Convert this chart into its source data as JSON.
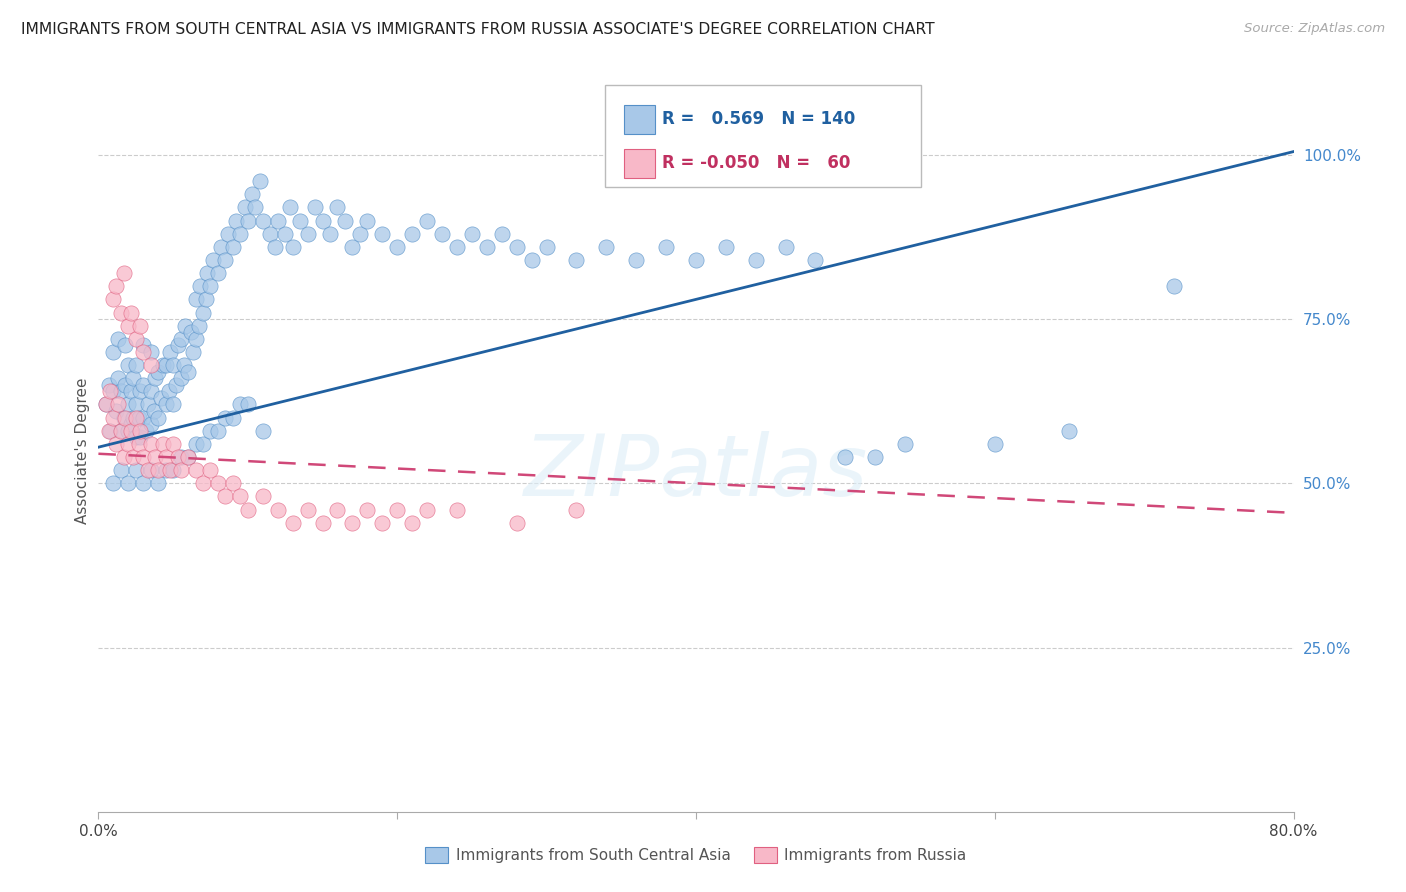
{
  "title": "IMMIGRANTS FROM SOUTH CENTRAL ASIA VS IMMIGRANTS FROM RUSSIA ASSOCIATE'S DEGREE CORRELATION CHART",
  "source_text": "Source: ZipAtlas.com",
  "ylabel": "Associate's Degree",
  "x_min": 0.0,
  "x_max": 0.8,
  "y_min": 0.0,
  "y_max": 1.1,
  "y_tick_labels_right": [
    "25.0%",
    "50.0%",
    "75.0%",
    "100.0%"
  ],
  "y_tick_vals_right": [
    0.25,
    0.5,
    0.75,
    1.0
  ],
  "legend_R1": "0.569",
  "legend_N1": "140",
  "legend_R2": "-0.050",
  "legend_N2": "60",
  "blue_color": "#a8c8e8",
  "blue_edge_color": "#5590c8",
  "pink_color": "#f8b8c8",
  "pink_edge_color": "#e06080",
  "blue_line_color": "#2060a0",
  "pink_line_color": "#d04878",
  "watermark": "ZIPatlas",
  "blue_trend_x0": 0.0,
  "blue_trend_y0": 0.555,
  "blue_trend_x1": 0.8,
  "blue_trend_y1": 1.005,
  "pink_trend_x0": 0.0,
  "pink_trend_y0": 0.545,
  "pink_trend_x1": 0.8,
  "pink_trend_y1": 0.455,
  "blue_scatter_x": [
    0.005,
    0.007,
    0.008,
    0.01,
    0.01,
    0.012,
    0.013,
    0.013,
    0.015,
    0.015,
    0.017,
    0.018,
    0.018,
    0.02,
    0.02,
    0.02,
    0.022,
    0.022,
    0.023,
    0.023,
    0.025,
    0.025,
    0.025,
    0.027,
    0.028,
    0.028,
    0.03,
    0.03,
    0.03,
    0.032,
    0.033,
    0.035,
    0.035,
    0.035,
    0.037,
    0.038,
    0.04,
    0.04,
    0.042,
    0.043,
    0.045,
    0.045,
    0.047,
    0.048,
    0.05,
    0.05,
    0.052,
    0.053,
    0.055,
    0.055,
    0.057,
    0.058,
    0.06,
    0.062,
    0.063,
    0.065,
    0.065,
    0.067,
    0.068,
    0.07,
    0.072,
    0.073,
    0.075,
    0.077,
    0.08,
    0.082,
    0.085,
    0.087,
    0.09,
    0.092,
    0.095,
    0.098,
    0.1,
    0.103,
    0.105,
    0.108,
    0.11,
    0.115,
    0.118,
    0.12,
    0.125,
    0.128,
    0.13,
    0.135,
    0.14,
    0.145,
    0.15,
    0.155,
    0.16,
    0.165,
    0.17,
    0.175,
    0.18,
    0.19,
    0.2,
    0.21,
    0.22,
    0.23,
    0.24,
    0.25,
    0.26,
    0.27,
    0.28,
    0.29,
    0.3,
    0.32,
    0.34,
    0.36,
    0.38,
    0.4,
    0.42,
    0.44,
    0.46,
    0.48,
    0.5,
    0.52,
    0.54,
    0.6,
    0.65,
    0.72,
    0.01,
    0.015,
    0.02,
    0.025,
    0.03,
    0.035,
    0.04,
    0.045,
    0.05,
    0.055,
    0.06,
    0.065,
    0.07,
    0.075,
    0.08,
    0.085,
    0.09,
    0.095,
    0.1,
    0.11
  ],
  "blue_scatter_y": [
    0.62,
    0.65,
    0.58,
    0.64,
    0.7,
    0.61,
    0.66,
    0.72,
    0.58,
    0.64,
    0.6,
    0.65,
    0.71,
    0.58,
    0.62,
    0.68,
    0.59,
    0.64,
    0.6,
    0.66,
    0.57,
    0.62,
    0.68,
    0.6,
    0.57,
    0.64,
    0.6,
    0.65,
    0.71,
    0.58,
    0.62,
    0.59,
    0.64,
    0.7,
    0.61,
    0.66,
    0.6,
    0.67,
    0.63,
    0.68,
    0.62,
    0.68,
    0.64,
    0.7,
    0.62,
    0.68,
    0.65,
    0.71,
    0.66,
    0.72,
    0.68,
    0.74,
    0.67,
    0.73,
    0.7,
    0.72,
    0.78,
    0.74,
    0.8,
    0.76,
    0.78,
    0.82,
    0.8,
    0.84,
    0.82,
    0.86,
    0.84,
    0.88,
    0.86,
    0.9,
    0.88,
    0.92,
    0.9,
    0.94,
    0.92,
    0.96,
    0.9,
    0.88,
    0.86,
    0.9,
    0.88,
    0.92,
    0.86,
    0.9,
    0.88,
    0.92,
    0.9,
    0.88,
    0.92,
    0.9,
    0.86,
    0.88,
    0.9,
    0.88,
    0.86,
    0.88,
    0.9,
    0.88,
    0.86,
    0.88,
    0.86,
    0.88,
    0.86,
    0.84,
    0.86,
    0.84,
    0.86,
    0.84,
    0.86,
    0.84,
    0.86,
    0.84,
    0.86,
    0.84,
    0.54,
    0.54,
    0.56,
    0.56,
    0.58,
    0.8,
    0.5,
    0.52,
    0.5,
    0.52,
    0.5,
    0.52,
    0.5,
    0.52,
    0.52,
    0.54,
    0.54,
    0.56,
    0.56,
    0.58,
    0.58,
    0.6,
    0.6,
    0.62,
    0.62,
    0.58
  ],
  "pink_scatter_x": [
    0.005,
    0.007,
    0.008,
    0.01,
    0.012,
    0.013,
    0.015,
    0.017,
    0.018,
    0.02,
    0.022,
    0.023,
    0.025,
    0.027,
    0.028,
    0.03,
    0.033,
    0.035,
    0.038,
    0.04,
    0.043,
    0.045,
    0.048,
    0.05,
    0.053,
    0.055,
    0.06,
    0.065,
    0.07,
    0.075,
    0.08,
    0.085,
    0.09,
    0.095,
    0.1,
    0.11,
    0.12,
    0.13,
    0.14,
    0.15,
    0.16,
    0.17,
    0.18,
    0.19,
    0.2,
    0.21,
    0.22,
    0.24,
    0.28,
    0.32,
    0.01,
    0.012,
    0.015,
    0.017,
    0.02,
    0.022,
    0.025,
    0.028,
    0.03,
    0.035
  ],
  "pink_scatter_y": [
    0.62,
    0.58,
    0.64,
    0.6,
    0.56,
    0.62,
    0.58,
    0.54,
    0.6,
    0.56,
    0.58,
    0.54,
    0.6,
    0.56,
    0.58,
    0.54,
    0.52,
    0.56,
    0.54,
    0.52,
    0.56,
    0.54,
    0.52,
    0.56,
    0.54,
    0.52,
    0.54,
    0.52,
    0.5,
    0.52,
    0.5,
    0.48,
    0.5,
    0.48,
    0.46,
    0.48,
    0.46,
    0.44,
    0.46,
    0.44,
    0.46,
    0.44,
    0.46,
    0.44,
    0.46,
    0.44,
    0.46,
    0.46,
    0.44,
    0.46,
    0.78,
    0.8,
    0.76,
    0.82,
    0.74,
    0.76,
    0.72,
    0.74,
    0.7,
    0.68
  ]
}
